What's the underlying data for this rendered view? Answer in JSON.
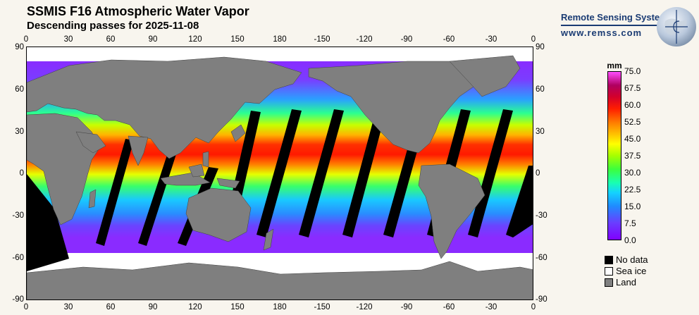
{
  "header": {
    "title": "SSMIS F16 Atmospheric Water Vapor",
    "subtitle": "Descending passes for 2025-11-08"
  },
  "branding": {
    "org_name": "Remote Sensing Systems",
    "url": "www.remss.com",
    "logo_icon": "globe-logo-icon"
  },
  "axes": {
    "top_ticks": [
      "0",
      "30",
      "60",
      "90",
      "120",
      "150",
      "180",
      "-150",
      "-120",
      "-90",
      "-60",
      "-30",
      "0"
    ],
    "bottom_ticks": [
      "0",
      "30",
      "60",
      "90",
      "120",
      "150",
      "180",
      "-150",
      "-120",
      "-90",
      "-60",
      "-30",
      "0"
    ],
    "left_ticks": [
      "90",
      "60",
      "30",
      "0",
      "-30",
      "-60",
      "-90"
    ],
    "right_ticks": [
      "90",
      "60",
      "30",
      "0",
      "-30",
      "-60",
      "-90"
    ]
  },
  "colorbar": {
    "unit": "mm",
    "labels": [
      "75.0",
      "67.5",
      "60.0",
      "52.5",
      "45.0",
      "37.5",
      "30.0",
      "22.5",
      "15.0",
      "7.5",
      "0.0"
    ],
    "min": 0,
    "max": 75,
    "colors": {
      "low": "#8000ff",
      "mid": "#3cff3c",
      "high": "#ff1e00",
      "top": "#ff4dff"
    }
  },
  "legend": {
    "items": [
      {
        "label": "No data",
        "color": "#000000"
      },
      {
        "label": "Sea ice",
        "color": "#ffffff"
      },
      {
        "label": "Land",
        "color": "#808080"
      }
    ]
  },
  "map": {
    "land_color": "#7f7f7f",
    "no_data_color": "#000000",
    "sea_ice_color": "#ffffff"
  }
}
